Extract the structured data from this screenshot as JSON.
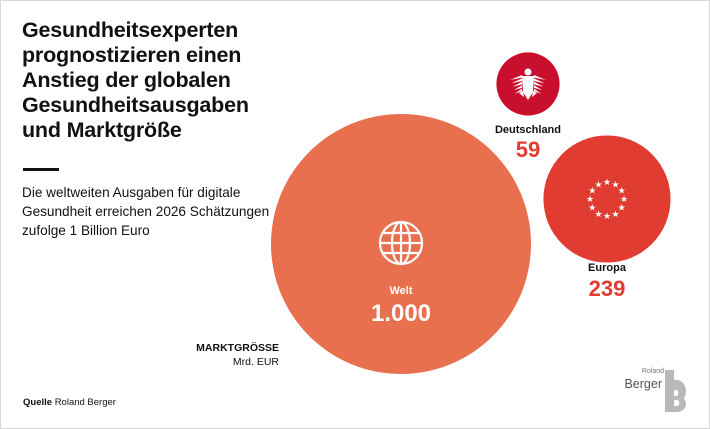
{
  "title": "Gesundheitsexperten prognostizieren einen Anstieg der globalen Gesundheitsausgaben und Marktgröße",
  "subtitle": "Die weltweiten Ausgaben für digitale Gesundheit erreichen 2026 Schätzungen zufolge 1 Billion Euro",
  "source": {
    "label": "Quelle",
    "text": "Roland Berger"
  },
  "unit": {
    "label": "MARKTGRÖSSE",
    "value": "Mrd. EUR"
  },
  "logo": {
    "small": "Roland",
    "big": "Berger"
  },
  "colors": {
    "welt": "#e8704f",
    "europa": "#e03c31",
    "deutschland": "#c8102e",
    "value_text": "#e03c31"
  },
  "chart_data": {
    "type": "bubble",
    "title": "Gesundheitsexperten prognostizieren einen Anstieg der globalen Gesundheitsausgaben und Marktgröße",
    "unit": "Mrd. EUR",
    "items": [
      {
        "name": "Welt",
        "value": 1000,
        "display": "1.000",
        "icon": "globe-icon"
      },
      {
        "name": "Europa",
        "value": 239,
        "display": "239",
        "icon": "eu-stars-icon"
      },
      {
        "name": "Deutschland",
        "value": 59,
        "display": "59",
        "icon": "federal-eagle-icon"
      }
    ]
  }
}
